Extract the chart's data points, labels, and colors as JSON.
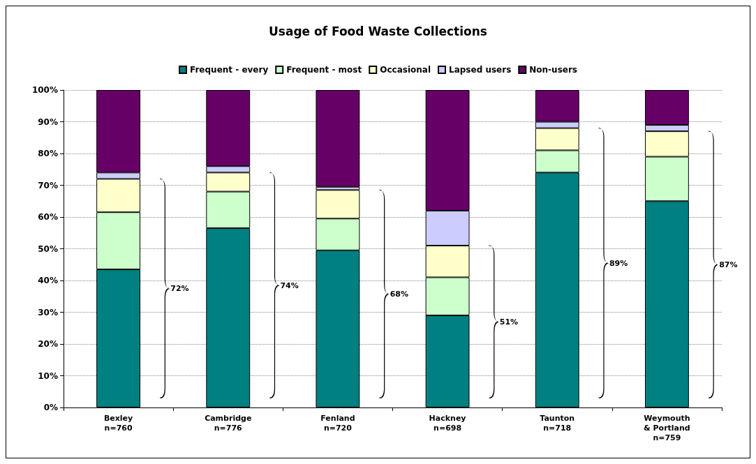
{
  "chart_data": {
    "type": "bar",
    "title": "Usage of Food Waste Collections",
    "stacked": true,
    "categories": [
      "Bexley\nn=760",
      "Cambridge\nn=776",
      "Fenland\nn=720",
      "Hackney\nn=698",
      "Taunton\nn=718",
      "Weymouth\n& Portland\nn=759"
    ],
    "series": [
      {
        "name": "Frequent - every",
        "color": "#008080",
        "values": [
          43.5,
          56.5,
          49.5,
          29,
          74,
          65
        ]
      },
      {
        "name": "Frequent - most",
        "color": "#ccffcc",
        "values": [
          18,
          11.5,
          10,
          12,
          7,
          14
        ]
      },
      {
        "name": "Occasional",
        "color": "#ffffcc",
        "values": [
          10.5,
          6,
          9,
          10,
          7,
          8
        ]
      },
      {
        "name": "Lapsed users",
        "color": "#ccccff",
        "values": [
          2,
          2,
          1,
          11,
          2,
          2
        ]
      },
      {
        "name": "Non-users",
        "color": "#660066",
        "values": [
          26,
          24,
          30.5,
          38,
          10,
          11
        ]
      }
    ],
    "ylim": [
      0,
      100
    ],
    "yticks": [
      {
        "value": 0,
        "label": "0%"
      },
      {
        "value": 10,
        "label": "10%"
      },
      {
        "value": 20,
        "label": "20%"
      },
      {
        "value": 30,
        "label": "30%"
      },
      {
        "value": 40,
        "label": "40%"
      },
      {
        "value": 50,
        "label": "50%"
      },
      {
        "value": 60,
        "label": "60%"
      },
      {
        "value": 70,
        "label": "70%"
      },
      {
        "value": 80,
        "label": "80%"
      },
      {
        "value": 90,
        "label": "90%"
      },
      {
        "value": 100,
        "label": "100%"
      }
    ],
    "grid": "y",
    "legend": "top",
    "annotations": [
      "72%",
      "74%",
      "68%",
      "51%",
      "89%",
      "87%"
    ]
  }
}
